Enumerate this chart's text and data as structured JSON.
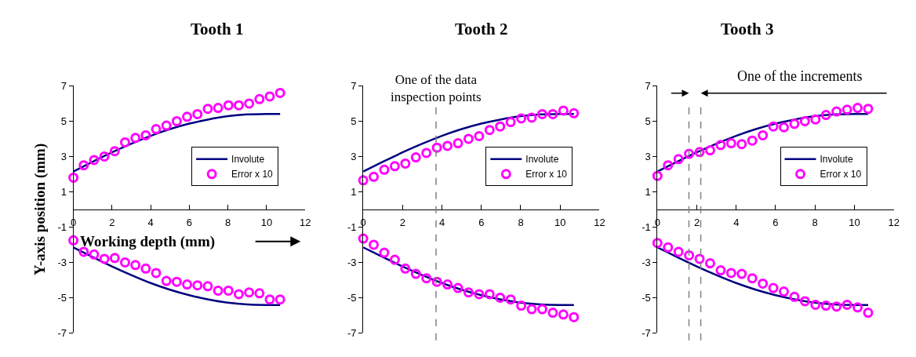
{
  "chart_data": [
    {
      "type": "line",
      "title": "Tooth 1",
      "xlabel": "Working depth (mm)",
      "ylabel": "Y-axis position (mm)",
      "xlim": [
        0,
        12
      ],
      "xticks": [
        0,
        2,
        4,
        6,
        8,
        10,
        12
      ],
      "ylim": [
        -7,
        7
      ],
      "yticks": [
        -7,
        -5,
        -3,
        -1,
        1,
        3,
        5,
        7
      ],
      "legend": "right",
      "series": [
        {
          "name": "Involute",
          "color": "#000080",
          "x": [
            0,
            1,
            2,
            3,
            4,
            5,
            6,
            7,
            8,
            9,
            10,
            10.7
          ],
          "values": [
            2.15,
            2.7,
            3.23,
            3.72,
            4.17,
            4.55,
            4.86,
            5.1,
            5.28,
            5.38,
            5.41,
            5.41
          ]
        },
        {
          "color": "#000080",
          "x": [
            0,
            1,
            2,
            3,
            4,
            5,
            6,
            7,
            8,
            9,
            10,
            10.7
          ],
          "values": [
            -2.15,
            -2.7,
            -3.23,
            -3.72,
            -4.17,
            -4.55,
            -4.86,
            -5.1,
            -5.28,
            -5.38,
            -5.41,
            -5.41
          ]
        },
        {
          "name": "Error x 10",
          "type": "scatter",
          "marker": "circle",
          "color": "#ff00ff",
          "x": [
            0,
            0.535,
            1.07,
            1.605,
            2.14,
            2.675,
            3.21,
            3.745,
            4.28,
            4.815,
            5.35,
            5.885,
            6.42,
            6.955,
            7.49,
            8.025,
            8.56,
            9.095,
            9.63,
            10.165,
            10.7
          ],
          "values": [
            1.8,
            2.5,
            2.8,
            3.0,
            3.3,
            3.8,
            4.05,
            4.2,
            4.55,
            4.75,
            5.0,
            5.25,
            5.4,
            5.7,
            5.75,
            5.9,
            5.9,
            6.0,
            6.25,
            6.4,
            6.6
          ]
        },
        {
          "type": "scatter",
          "marker": "circle",
          "color": "#ff00ff",
          "x": [
            0,
            0.535,
            1.07,
            1.605,
            2.14,
            2.675,
            3.21,
            3.745,
            4.28,
            4.815,
            5.35,
            5.885,
            6.42,
            6.955,
            7.49,
            8.025,
            8.56,
            9.095,
            9.63,
            10.165,
            10.7
          ],
          "values": [
            -1.75,
            -2.4,
            -2.55,
            -2.8,
            -2.75,
            -3.0,
            -3.15,
            -3.35,
            -3.6,
            -4.05,
            -4.1,
            -4.25,
            -4.3,
            -4.35,
            -4.6,
            -4.6,
            -4.8,
            -4.7,
            -4.75,
            -5.1,
            -5.1
          ]
        }
      ]
    },
    {
      "type": "line",
      "title": "Tooth 2",
      "xlim": [
        0,
        12
      ],
      "xticks": [
        0,
        2,
        4,
        6,
        8,
        10,
        12
      ],
      "ylim": [
        -7,
        7
      ],
      "yticks": [
        -7,
        -5,
        -3,
        -1,
        1,
        3,
        5,
        7
      ],
      "legend": "right",
      "ref_lines": [
        {
          "axis": "x",
          "value": 3.7,
          "label": "One of the data inspection points",
          "color": "#808080",
          "line_style": "dashed"
        }
      ],
      "series": [
        {
          "name": "Involute",
          "color": "#000080",
          "x": [
            0,
            1,
            2,
            3,
            4,
            5,
            6,
            7,
            8,
            9,
            10,
            10.7
          ],
          "values": [
            2.15,
            2.7,
            3.23,
            3.72,
            4.17,
            4.55,
            4.86,
            5.1,
            5.28,
            5.38,
            5.41,
            5.41
          ]
        },
        {
          "color": "#000080",
          "x": [
            0,
            1,
            2,
            3,
            4,
            5,
            6,
            7,
            8,
            9,
            10,
            10.7
          ],
          "values": [
            -2.15,
            -2.7,
            -3.23,
            -3.72,
            -4.17,
            -4.55,
            -4.86,
            -5.1,
            -5.28,
            -5.38,
            -5.41,
            -5.41
          ]
        },
        {
          "name": "Error x 10",
          "type": "scatter",
          "marker": "circle",
          "color": "#ff00ff",
          "x": [
            0,
            0.535,
            1.07,
            1.605,
            2.14,
            2.675,
            3.21,
            3.745,
            4.28,
            4.815,
            5.35,
            5.885,
            6.42,
            6.955,
            7.49,
            8.025,
            8.56,
            9.095,
            9.63,
            10.165,
            10.7
          ],
          "values": [
            1.65,
            1.85,
            2.25,
            2.45,
            2.6,
            2.95,
            3.2,
            3.5,
            3.6,
            3.75,
            4.0,
            4.15,
            4.5,
            4.7,
            4.95,
            5.15,
            5.2,
            5.4,
            5.4,
            5.6,
            5.45
          ]
        },
        {
          "type": "scatter",
          "marker": "circle",
          "color": "#ff00ff",
          "x": [
            0,
            0.535,
            1.07,
            1.605,
            2.14,
            2.675,
            3.21,
            3.745,
            4.28,
            4.815,
            5.35,
            5.885,
            6.42,
            6.955,
            7.49,
            8.025,
            8.56,
            9.095,
            9.63,
            10.165,
            10.7
          ],
          "values": [
            -1.65,
            -2.0,
            -2.45,
            -2.85,
            -3.35,
            -3.65,
            -3.9,
            -4.1,
            -4.25,
            -4.45,
            -4.7,
            -4.8,
            -4.8,
            -5.0,
            -5.1,
            -5.45,
            -5.65,
            -5.65,
            -5.85,
            -5.95,
            -6.1
          ]
        }
      ]
    },
    {
      "type": "line",
      "title": "Tooth 3",
      "xlim": [
        0,
        12
      ],
      "xticks": [
        0,
        2,
        4,
        6,
        8,
        10,
        12
      ],
      "ylim": [
        -7,
        7
      ],
      "yticks": [
        -7,
        -5,
        -3,
        -1,
        1,
        3,
        5,
        7
      ],
      "legend": "right",
      "ref_lines": [
        {
          "axis": "x",
          "value": 1.6,
          "color": "#808080",
          "line_style": "dashed"
        },
        {
          "axis": "x",
          "value": 2.2,
          "color": "#808080",
          "line_style": "dashed"
        }
      ],
      "annotations": [
        "One of the increments"
      ],
      "series": [
        {
          "name": "Involute",
          "color": "#000080",
          "x": [
            0,
            1,
            2,
            3,
            4,
            5,
            6,
            7,
            8,
            9,
            10,
            10.7
          ],
          "values": [
            2.15,
            2.7,
            3.23,
            3.72,
            4.17,
            4.55,
            4.86,
            5.1,
            5.28,
            5.38,
            5.41,
            5.41
          ]
        },
        {
          "color": "#000080",
          "x": [
            0,
            1,
            2,
            3,
            4,
            5,
            6,
            7,
            8,
            9,
            10,
            10.7
          ],
          "values": [
            -2.15,
            -2.7,
            -3.23,
            -3.72,
            -4.17,
            -4.55,
            -4.86,
            -5.1,
            -5.28,
            -5.38,
            -5.41,
            -5.41
          ]
        },
        {
          "name": "Error x 10",
          "type": "scatter",
          "marker": "circle",
          "color": "#ff00ff",
          "x": [
            0,
            0.535,
            1.07,
            1.605,
            2.14,
            2.675,
            3.21,
            3.745,
            4.28,
            4.815,
            5.35,
            5.885,
            6.42,
            6.955,
            7.49,
            8.025,
            8.56,
            9.095,
            9.63,
            10.165,
            10.7
          ],
          "values": [
            1.9,
            2.5,
            2.85,
            3.15,
            3.25,
            3.35,
            3.65,
            3.75,
            3.7,
            3.9,
            4.2,
            4.7,
            4.65,
            4.85,
            5.0,
            5.1,
            5.35,
            5.55,
            5.65,
            5.75,
            5.7
          ]
        },
        {
          "type": "scatter",
          "marker": "circle",
          "color": "#ff00ff",
          "x": [
            0,
            0.535,
            1.07,
            1.605,
            2.14,
            2.675,
            3.21,
            3.745,
            4.28,
            4.815,
            5.35,
            5.885,
            6.42,
            6.955,
            7.49,
            8.025,
            8.56,
            9.095,
            9.63,
            10.165,
            10.7
          ],
          "values": [
            -1.9,
            -2.15,
            -2.4,
            -2.6,
            -2.8,
            -3.05,
            -3.45,
            -3.6,
            -3.65,
            -3.9,
            -4.2,
            -4.45,
            -4.65,
            -4.95,
            -5.2,
            -5.4,
            -5.45,
            -5.5,
            -5.4,
            -5.55,
            -5.85
          ]
        }
      ]
    }
  ]
}
